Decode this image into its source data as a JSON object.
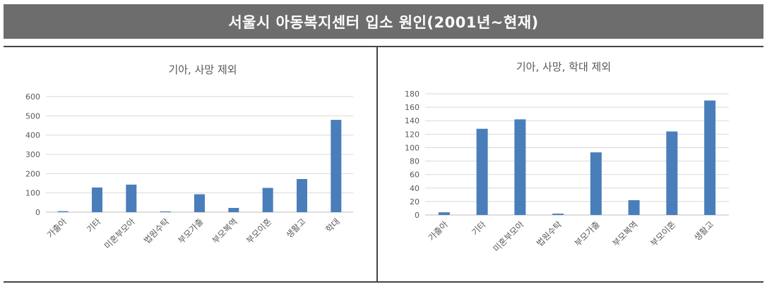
{
  "header": {
    "title": "서울시 아동복지센터 입소 원인(2001년~현재)"
  },
  "colors": {
    "bar": "#4a7ebb",
    "grid": "#d9d9d9",
    "axis": "#bfbfbf",
    "banner": "#6d6d6d"
  },
  "chart_data": [
    {
      "type": "bar",
      "title": "기아, 사망 제외",
      "categories": [
        "가출아",
        "기타",
        "미혼부모아",
        "법원수탁",
        "부모가출",
        "부모복역",
        "부모이혼",
        "생활고",
        "학대"
      ],
      "values": [
        5,
        128,
        143,
        4,
        93,
        22,
        126,
        172,
        479
      ],
      "ylim": [
        0,
        600
      ],
      "yticks": [
        0,
        100,
        200,
        300,
        400,
        500,
        600
      ],
      "grid": true
    },
    {
      "type": "bar",
      "title": "기아, 사망, 학대 제외",
      "categories": [
        "가출아",
        "기타",
        "미혼부모아",
        "법원수탁",
        "부모가출",
        "부모복역",
        "부모이혼",
        "생활고"
      ],
      "values": [
        4,
        128,
        142,
        2,
        93,
        22,
        124,
        170
      ],
      "ylim": [
        0,
        180
      ],
      "yticks": [
        0,
        20,
        40,
        60,
        80,
        100,
        120,
        140,
        160,
        180
      ],
      "grid": true
    }
  ]
}
